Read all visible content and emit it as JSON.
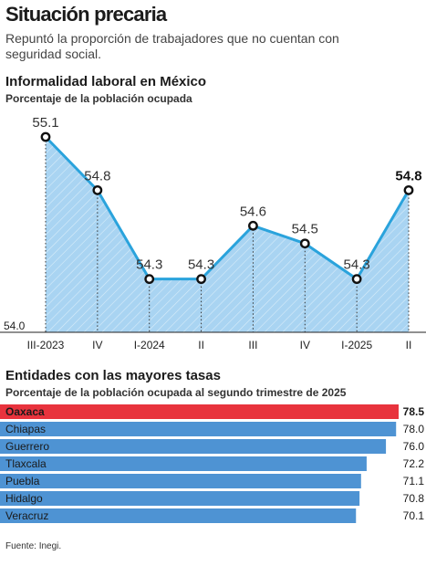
{
  "headline": "Situación precaria",
  "subheadline": "Repuntó la proporción de trabajadores que no cuentan con seguridad social.",
  "source": "Fuente: Inegi.",
  "colors": {
    "line": "#2aa3dc",
    "area": "#a9d4f2",
    "bar": "#4e93d3",
    "highlight_bar": "#e8333d"
  },
  "chart_data": [
    {
      "type": "area",
      "title": "Informalidad laboral en México",
      "subtitle": "Porcentaje de la población ocupada",
      "categories": [
        "III-2023",
        "IV",
        "I-2024",
        "II",
        "III",
        "IV",
        "I-2025",
        "II"
      ],
      "values": [
        55.1,
        54.8,
        54.3,
        54.3,
        54.6,
        54.5,
        54.3,
        54.8
      ],
      "value_labels": [
        "55.1",
        "54.8",
        "54.3",
        "54.3",
        "54.6",
        "54.5",
        "54.3",
        "54.8"
      ],
      "highlight_index": 7,
      "baseline_label": "54.0",
      "ylim": [
        54.0,
        55.1
      ],
      "grid": false
    },
    {
      "type": "bar",
      "orientation": "horizontal",
      "title": "Entidades con las mayores tasas",
      "subtitle": "Porcentaje de la población ocupada al segundo trimestre de 2025",
      "categories": [
        "Oaxaca",
        "Chiapas",
        "Guerrero",
        "Tlaxcala",
        "Puebla",
        "Hidalgo",
        "Veracruz"
      ],
      "values": [
        78.5,
        78.0,
        76.0,
        72.2,
        71.1,
        70.8,
        70.1
      ],
      "value_labels": [
        "78.5",
        "78.0",
        "76.0",
        "72.2",
        "71.1",
        "70.8",
        "70.1"
      ],
      "highlight_index": 0
    }
  ]
}
